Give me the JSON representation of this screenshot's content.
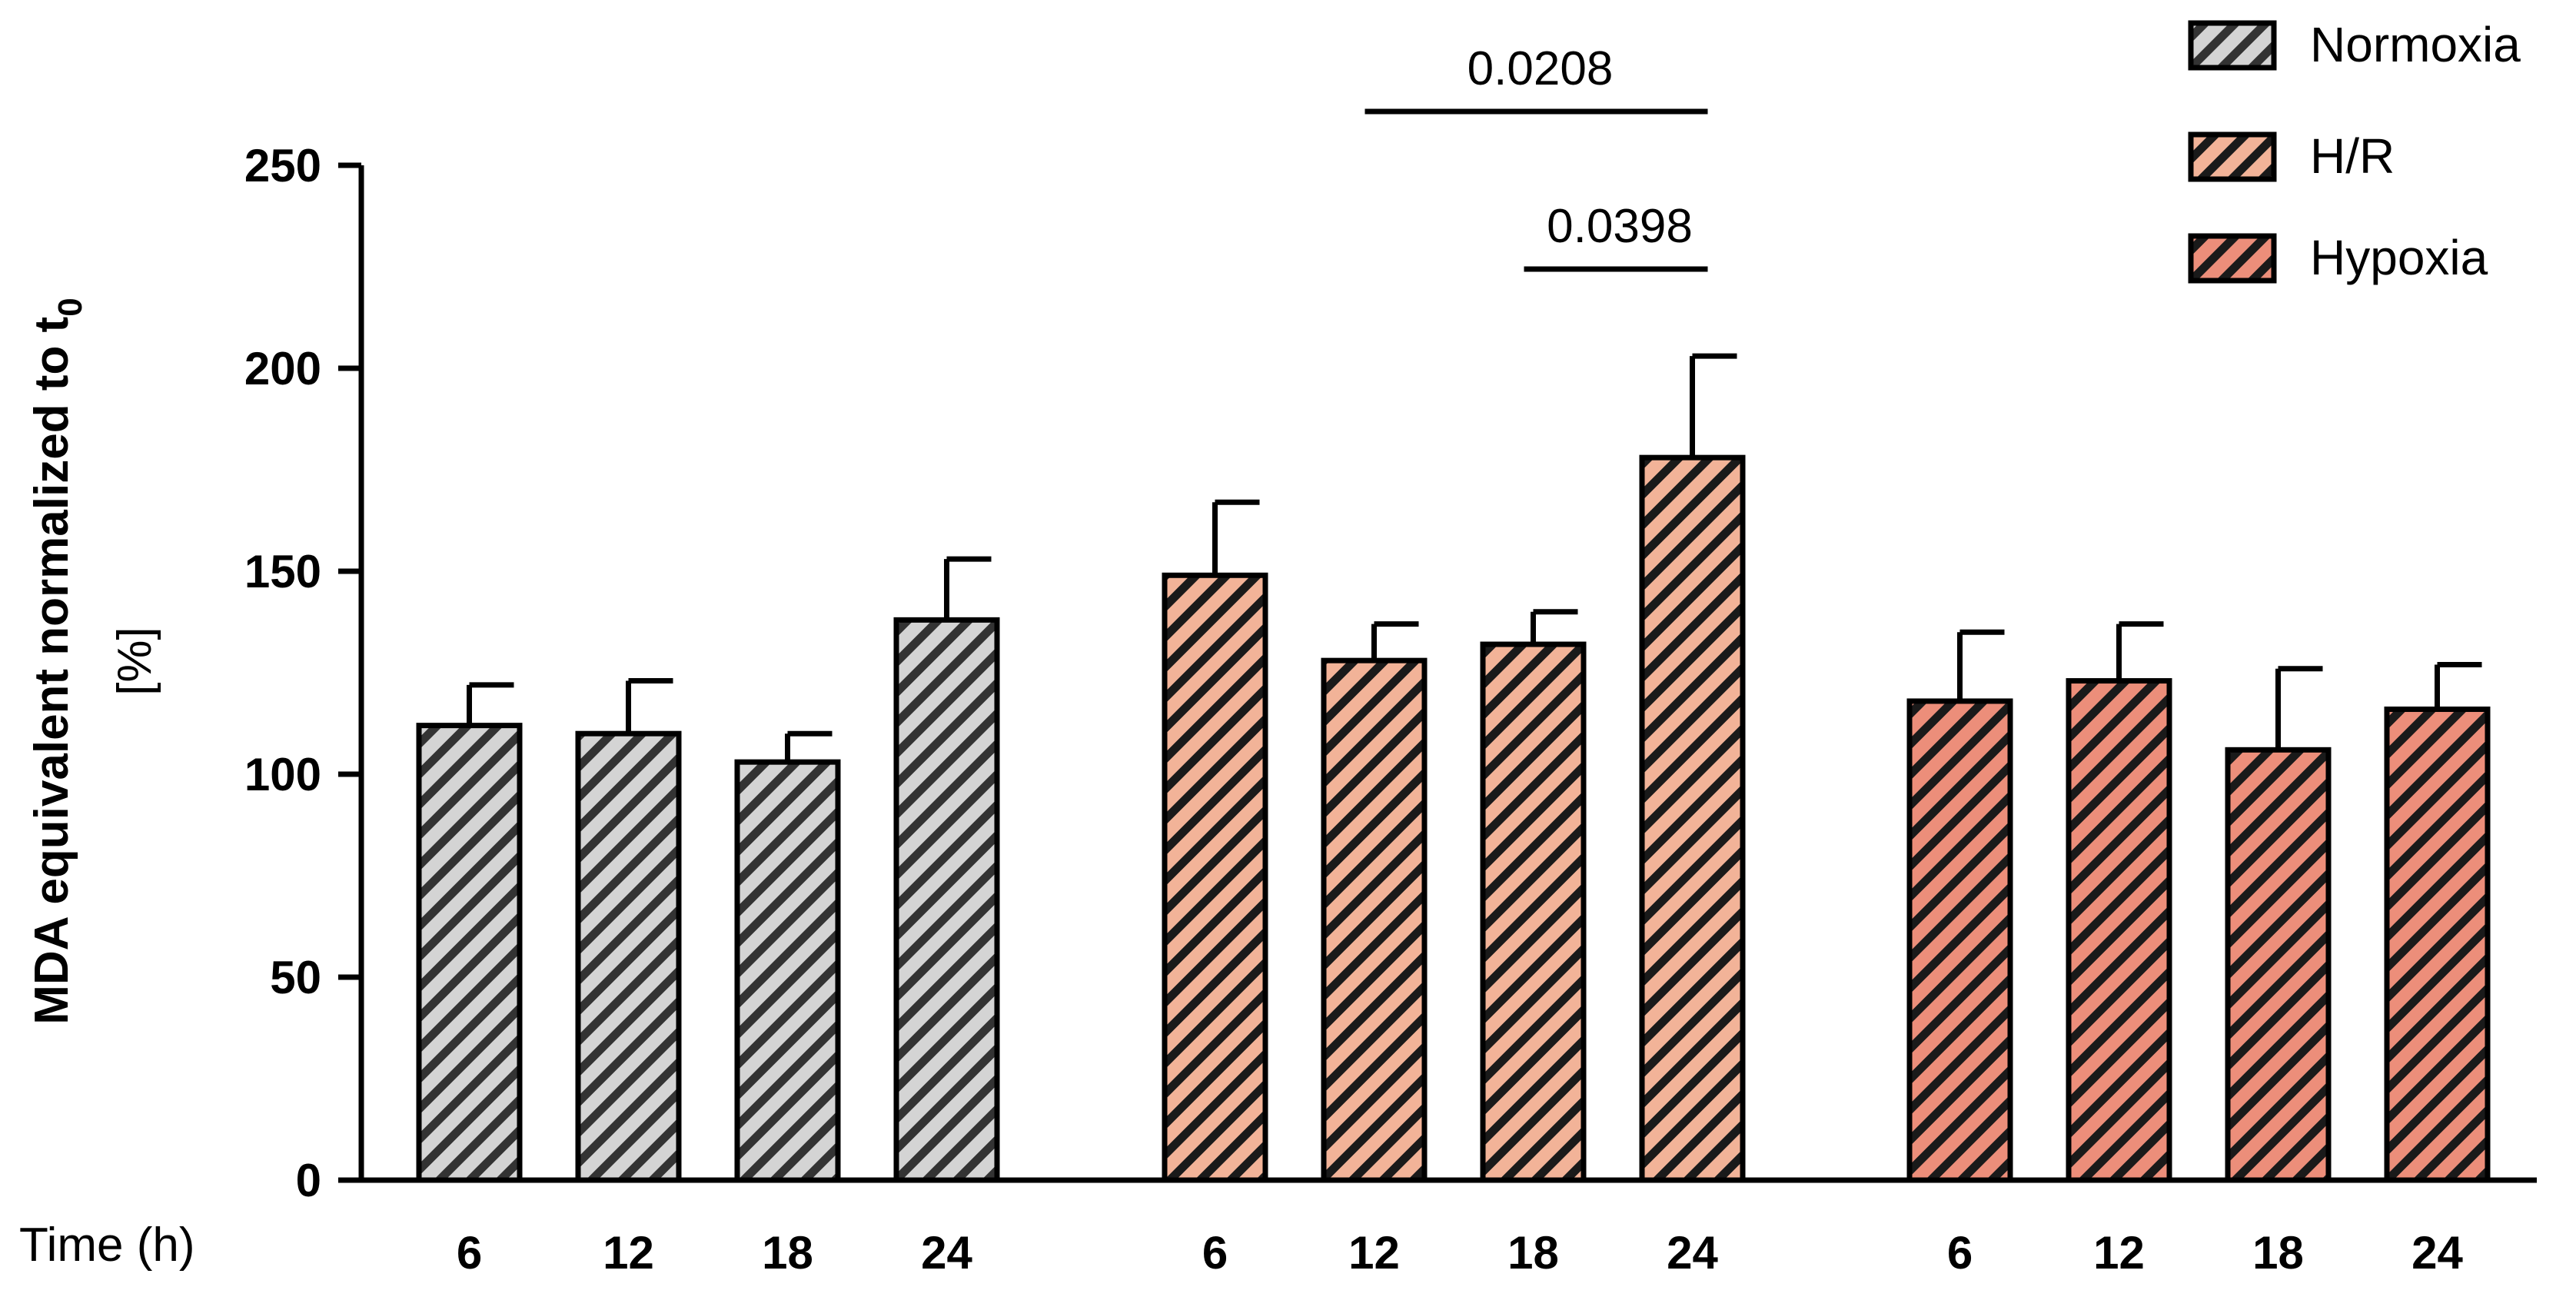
{
  "chart_data": {
    "type": "bar",
    "title": "",
    "ylabel_main": "MDA equivalent normalized to t",
    "ylabel_sub": "0",
    "ylabel_unit": "[%]",
    "xlabel": "Time (h)",
    "ylim": [
      0,
      250
    ],
    "yticks": [
      "0",
      "50",
      "100",
      "150",
      "200",
      "250"
    ],
    "categories": [
      "6",
      "12",
      "18",
      "24"
    ],
    "legend_position": "top-right",
    "series": [
      {
        "name": "Normoxia",
        "color": "#d4d4d4",
        "values": [
          112,
          110,
          103,
          138
        ],
        "errors": [
          10,
          13,
          7,
          15
        ]
      },
      {
        "name": "H/R",
        "color": "#f2b398",
        "values": [
          149,
          128,
          132,
          178
        ],
        "errors": [
          18,
          9,
          8,
          25
        ]
      },
      {
        "name": "Hypoxia",
        "color": "#ec8e7a",
        "values": [
          118,
          123,
          106,
          116
        ],
        "errors": [
          17,
          14,
          20,
          11
        ]
      }
    ],
    "annotations": [
      {
        "label": "0.0208",
        "series": 1,
        "from": 1,
        "to": 3
      },
      {
        "label": "0.0398",
        "series": 1,
        "from": 2,
        "to": 3
      }
    ]
  }
}
